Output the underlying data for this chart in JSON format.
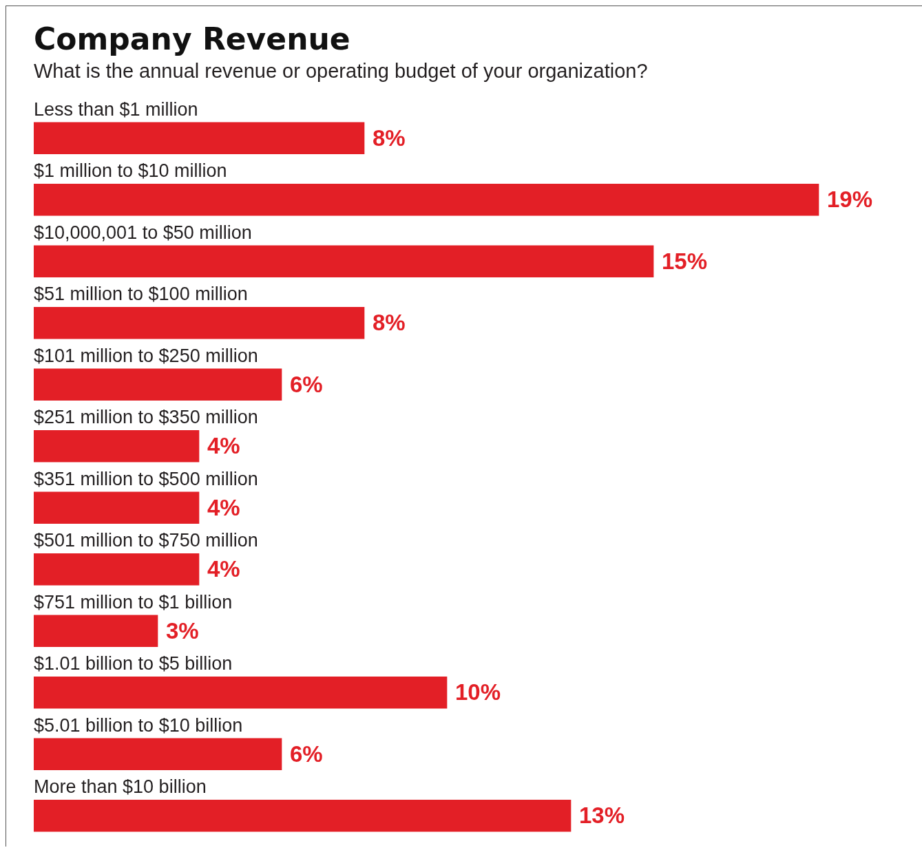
{
  "chart_data": {
    "type": "bar",
    "orientation": "horizontal",
    "title": "Company Revenue",
    "subtitle": "What is the annual revenue or operating budget of your organization?",
    "categories": [
      "Less than $1 million",
      "$1 million to $10 million",
      "$10,000,001 to $50 million",
      "$51 million to $100 million",
      "$101 million to $250 million",
      "$251 million to $350 million",
      "$351 million to $500 million",
      "$501 million to $750 million",
      "$751 million to $1 billion",
      "$1.01 billion to $5 billion",
      "$5.01 billion to $10 billion",
      "More than $10 billion"
    ],
    "values": [
      8,
      19,
      15,
      8,
      6,
      4,
      4,
      4,
      3,
      10,
      6,
      13
    ],
    "value_labels": [
      "8%",
      "19%",
      "15%",
      "8%",
      "6%",
      "4%",
      "4%",
      "4%",
      "3%",
      "10%",
      "6%",
      "13%"
    ],
    "color": "#e31f26",
    "legend": false,
    "tick_labels": false
  }
}
